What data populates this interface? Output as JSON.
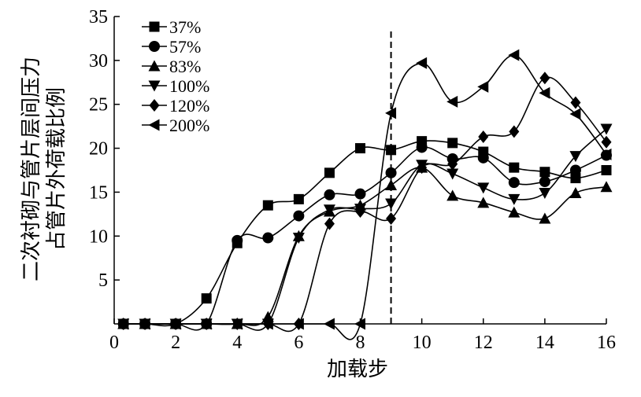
{
  "chart_data": {
    "type": "line",
    "xlabel": "加载步",
    "ylabel_lines": [
      "二次衬砌与管片层间压力",
      "占管片外荷载比例"
    ],
    "xlim": [
      0,
      16
    ],
    "ylim": [
      0,
      35
    ],
    "xticks": [
      "0",
      "2",
      "4",
      "6",
      "8",
      "10",
      "12",
      "14",
      "16"
    ],
    "yticks": [
      "5",
      "10",
      "15",
      "20",
      "25",
      "30",
      "35"
    ],
    "grid": false,
    "legend_position": "top-left",
    "reference_line": {
      "x": 9,
      "style": "dashed"
    },
    "series": [
      {
        "name": "37%",
        "marker": "square",
        "x": [
          0.3,
          1,
          2,
          3,
          4,
          5,
          6,
          7,
          8,
          9,
          10,
          11,
          12,
          13,
          14,
          15,
          16
        ],
        "y": [
          0,
          0,
          0,
          2.9,
          9.2,
          13.5,
          14.2,
          17.2,
          20.0,
          19.8,
          20.8,
          20.6,
          19.6,
          17.8,
          17.3,
          16.6,
          17.5
        ]
      },
      {
        "name": "57%",
        "marker": "circle",
        "x": [
          0.3,
          1,
          2,
          3,
          4,
          5,
          6,
          7,
          8,
          9,
          10,
          11,
          12,
          13,
          14,
          15,
          16
        ],
        "y": [
          0,
          0,
          0,
          0,
          9.5,
          9.8,
          12.3,
          14.7,
          14.8,
          17.2,
          20.1,
          18.8,
          18.9,
          16.1,
          16.2,
          17.5,
          19.2
        ]
      },
      {
        "name": "83%",
        "marker": "triangle-up",
        "x": [
          0.3,
          1,
          2,
          3,
          4,
          5,
          6,
          7,
          8,
          9,
          10,
          11,
          12,
          13,
          14,
          15,
          16
        ],
        "y": [
          0,
          0,
          0,
          0,
          0,
          0.8,
          10.0,
          12.8,
          13.5,
          15.8,
          17.8,
          14.6,
          13.8,
          12.7,
          12.0,
          14.9,
          15.6
        ]
      },
      {
        "name": "100%",
        "marker": "triangle-down",
        "x": [
          0.3,
          1,
          2,
          3,
          4,
          5,
          6,
          7,
          8,
          9,
          10,
          11,
          12,
          13,
          14,
          15,
          16
        ],
        "y": [
          0,
          0,
          0,
          0,
          0,
          0,
          9.8,
          13.0,
          13.1,
          13.7,
          18.1,
          17.1,
          15.5,
          14.2,
          14.9,
          19.1,
          22.2
        ]
      },
      {
        "name": "120%",
        "marker": "diamond",
        "x": [
          0.3,
          1,
          2,
          3,
          4,
          5,
          6,
          7,
          8,
          9,
          10,
          11,
          12,
          13,
          14,
          15,
          16
        ],
        "y": [
          0,
          0,
          0,
          0,
          0,
          0,
          0,
          11.4,
          12.8,
          12.0,
          17.8,
          18.2,
          21.3,
          21.9,
          28.0,
          25.2,
          20.7
        ]
      },
      {
        "name": "200%",
        "marker": "triangle-left",
        "x": [
          0.3,
          1,
          2,
          3,
          4,
          5,
          6,
          7,
          8,
          9,
          10,
          11,
          12,
          13,
          14,
          15,
          16
        ],
        "y": [
          0,
          0,
          0,
          0,
          0,
          0,
          0,
          0,
          0,
          24.0,
          29.7,
          25.3,
          27.0,
          30.6,
          26.3,
          23.9,
          19.3
        ]
      }
    ]
  }
}
